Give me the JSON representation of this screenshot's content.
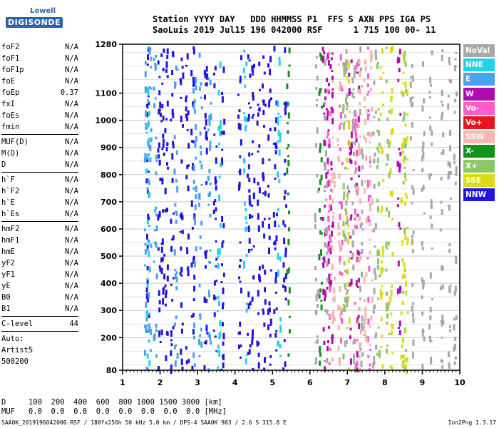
{
  "logo": {
    "top": "Lowell",
    "main": "DIGISONDE"
  },
  "header": {
    "line1": "Station YYYY DAY   DDD HHMMSS P1  FFS S AXN PPS IGA PS",
    "line2": "SaoLuis 2019 Jul15 196 042000 RSF      1 715 100 00- 11"
  },
  "params": [
    {
      "name": "foF2",
      "value": "N/A"
    },
    {
      "name": "foF1",
      "value": "N/A"
    },
    {
      "name": "foF1p",
      "value": "N/A"
    },
    {
      "name": "foE",
      "value": "N/A"
    },
    {
      "name": "foEp",
      "value": "0.37"
    },
    {
      "name": "fxI",
      "value": "N/A"
    },
    {
      "name": "foEs",
      "value": "N/A"
    },
    {
      "name": "fmin",
      "value": "N/A"
    },
    {
      "name": "MUF(D)",
      "value": "N/A"
    },
    {
      "name": "M(D)",
      "value": "N/A"
    },
    {
      "name": "D",
      "value": "N/A"
    },
    {
      "name": "h`F",
      "value": "N/A"
    },
    {
      "name": "h`F2",
      "value": "N/A"
    },
    {
      "name": "h`E",
      "value": "N/A"
    },
    {
      "name": "h`Es",
      "value": "N/A"
    },
    {
      "name": "hmF2",
      "value": "N/A"
    },
    {
      "name": "hmF1",
      "value": "N/A"
    },
    {
      "name": "hmE",
      "value": "N/A"
    },
    {
      "name": "yF2",
      "value": "N/A"
    },
    {
      "name": "yF1",
      "value": "N/A"
    },
    {
      "name": "yE",
      "value": "N/A"
    },
    {
      "name": "B0",
      "value": "N/A"
    },
    {
      "name": "B1",
      "value": "N/A"
    }
  ],
  "clevel": {
    "name": "C-level",
    "value": "44"
  },
  "auto": {
    "line1": "Auto:",
    "line2": "Artist5",
    "line3": "500200"
  },
  "legend": [
    {
      "label": "NoVal",
      "color": "#a8a8a8"
    },
    {
      "label": "NNE",
      "color": "#22d3ee"
    },
    {
      "label": "E",
      "color": "#4aa3ee"
    },
    {
      "label": "W",
      "color": "#b00bb0"
    },
    {
      "label": "Vo-",
      "color": "#ff5cc8"
    },
    {
      "label": "Vo+",
      "color": "#e8141e"
    },
    {
      "label": "SSW",
      "color": "#f5b8b0"
    },
    {
      "label": "X-",
      "color": "#14901e"
    },
    {
      "label": "X+",
      "color": "#8cc864"
    },
    {
      "label": "SSE",
      "color": "#dcdc14"
    },
    {
      "label": "NNW",
      "color": "#2214e0"
    }
  ],
  "bottom": {
    "line1": "D     100  200  400  600  800 1000 1500 3000 [km]",
    "line2": "MUF   0.0  0.0  0.0  0.0  0.0  0.0  0.0  0.0 [MHz]"
  },
  "footer": "SAA0K_2019196042000.RSF / 180fx256h 50 kHz 5.0 km / DPS-4 SAA0K 903 / 2.6 S 315.8 E",
  "version": "Ion2Png 1.3.17",
  "chart_data": {
    "type": "scatter",
    "title": "",
    "xlabel": "",
    "ylabel": "",
    "xlim": [
      1,
      10
    ],
    "ylim": [
      80,
      1280
    ],
    "x_ticks": [
      1,
      2,
      3,
      4,
      5,
      6,
      7,
      8,
      9,
      10
    ],
    "y_ticks": [
      80,
      200,
      300,
      400,
      500,
      600,
      700,
      800,
      900,
      1000,
      1100,
      1280
    ],
    "grid": true,
    "legend_position": "right",
    "series": [
      {
        "name": "NNW",
        "color": "#2214e0",
        "x_columns": [
          1.65,
          1.95,
          2.05,
          2.15,
          2.3,
          2.55,
          2.7,
          2.85,
          3.2,
          3.45,
          3.65,
          4.1,
          4.35,
          4.45,
          4.6,
          4.75,
          4.9,
          5.05,
          5.3
        ],
        "y_range": [
          85,
          1275
        ]
      },
      {
        "name": "E",
        "color": "#4aa3ee",
        "x_columns": [
          1.6,
          1.7,
          1.85,
          2.4,
          2.9,
          3.05,
          3.3
        ],
        "y_range": [
          85,
          1275
        ]
      },
      {
        "name": "NNE",
        "color": "#22d3ee",
        "x_columns": [
          1.65,
          3.55,
          4.25,
          5.15
        ],
        "y_range": [
          85,
          1275
        ]
      },
      {
        "name": "W",
        "color": "#b00bb0",
        "x_columns": [
          6.35,
          6.45,
          6.55,
          7.05,
          7.25,
          8.35
        ],
        "y_range": [
          85,
          1275
        ]
      },
      {
        "name": "Vo-",
        "color": "#ff5cc8",
        "x_columns": [
          6.5,
          6.8,
          7.2,
          7.55
        ],
        "y_range": [
          85,
          1275
        ]
      },
      {
        "name": "SSW",
        "color": "#f5b8b0",
        "x_columns": [
          6.6,
          6.75,
          7.3,
          7.45,
          7.6
        ],
        "y_range": [
          85,
          1275
        ]
      },
      {
        "name": "X-",
        "color": "#14901e",
        "x_columns": [
          5.4,
          6.25
        ],
        "y_range": [
          85,
          1275
        ]
      },
      {
        "name": "X+",
        "color": "#8cc864",
        "x_columns": [
          6.9,
          7.8,
          8.05,
          8.5
        ],
        "y_range": [
          85,
          1275
        ]
      },
      {
        "name": "SSE",
        "color": "#dcdc14",
        "x_columns": [
          7.0,
          7.9,
          8.15,
          8.45,
          8.55
        ],
        "y_range": [
          85,
          1275
        ]
      },
      {
        "name": "NoVal",
        "color": "#a8a8a8",
        "x_columns": [
          6.15,
          6.4,
          6.95,
          7.15,
          7.35,
          7.7,
          8.7,
          9.0,
          9.2,
          9.5,
          9.7,
          9.85
        ],
        "y_range": [
          85,
          1275
        ]
      }
    ]
  }
}
